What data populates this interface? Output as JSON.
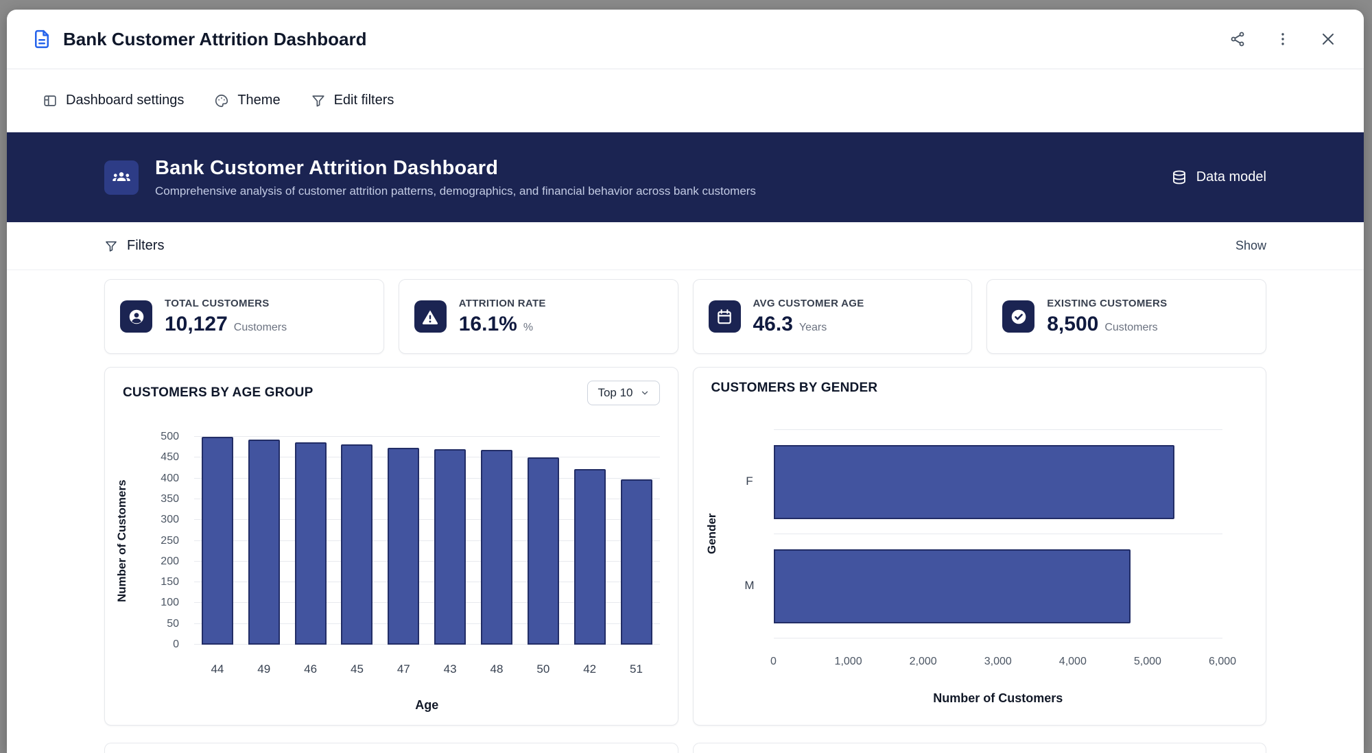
{
  "window": {
    "title": "Bank Customer Attrition Dashboard"
  },
  "toolbar": {
    "dashboard_settings": "Dashboard settings",
    "theme": "Theme",
    "edit_filters": "Edit filters"
  },
  "banner": {
    "title": "Bank Customer Attrition Dashboard",
    "subtitle": "Comprehensive analysis of customer attrition patterns, demographics, and financial behavior across bank customers",
    "data_model": "Data model"
  },
  "filters": {
    "label": "Filters",
    "show": "Show"
  },
  "kpis": [
    {
      "label": "TOTAL CUSTOMERS",
      "value": "10,127",
      "unit": "Customers",
      "icon": "user-circle-icon"
    },
    {
      "label": "ATTRITION RATE",
      "value": "16.1%",
      "unit": "%",
      "icon": "warning-icon"
    },
    {
      "label": "AVG CUSTOMER AGE",
      "value": "46.3",
      "unit": "Years",
      "icon": "calendar-icon"
    },
    {
      "label": "EXISTING CUSTOMERS",
      "value": "8,500",
      "unit": "Customers",
      "icon": "check-circle-icon"
    }
  ],
  "colors": {
    "banner_navy": "#1b2452",
    "tile_blue": "#2d3c86",
    "bar_fill": "#42549f",
    "bar_border": "#222d66",
    "accent_blue": "#2563eb"
  },
  "charts": {
    "age": {
      "title": "CUSTOMERS BY AGE GROUP",
      "dropdown_label": "Top 10",
      "chart_data": {
        "type": "bar",
        "categories": [
          "44",
          "49",
          "46",
          "45",
          "47",
          "43",
          "48",
          "50",
          "42",
          "51"
        ],
        "values": [
          500,
          493,
          486,
          482,
          474,
          470,
          468,
          450,
          423,
          398
        ],
        "title": "CUSTOMERS BY AGE GROUP",
        "xlabel": "Age",
        "ylabel": "Number of Customers",
        "ylim": [
          0,
          500
        ],
        "ytick_step": 50,
        "yticks": [
          "0",
          "50",
          "100",
          "150",
          "200",
          "250",
          "300",
          "350",
          "400",
          "450",
          "500"
        ],
        "grid": "horizontal"
      }
    },
    "gender": {
      "title": "CUSTOMERS BY GENDER",
      "chart_data": {
        "type": "bar-horizontal",
        "categories": [
          "F",
          "M"
        ],
        "values": [
          5358,
          4769
        ],
        "title": "CUSTOMERS BY GENDER",
        "xlabel": "Number of Customers",
        "ylabel": "Gender",
        "xlim": [
          0,
          6000
        ],
        "xticks": [
          "0",
          "1,000",
          "2,000",
          "3,000",
          "4,000",
          "5,000",
          "6,000"
        ],
        "grid": "band-separators"
      }
    }
  }
}
